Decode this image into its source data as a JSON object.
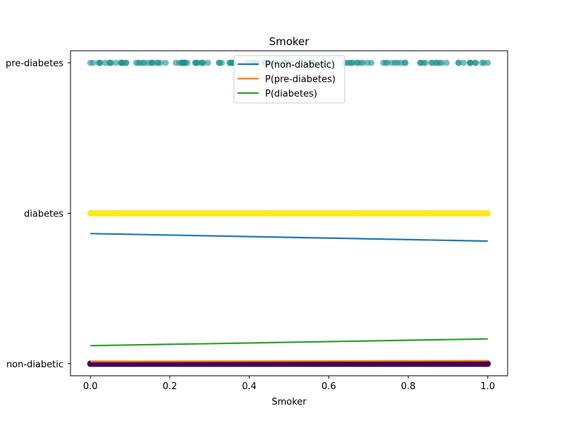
{
  "chart_data": {
    "type": "scatter",
    "title": "Smoker",
    "xlabel": "Smoker",
    "ylabel": "",
    "xlim": [
      -0.05,
      1.05
    ],
    "ylim": [
      -0.08,
      2.08
    ],
    "x_ticks": [
      0.0,
      0.2,
      0.4,
      0.6,
      0.8,
      1.0
    ],
    "x_tick_labels": [
      "0.0",
      "0.2",
      "0.4",
      "0.6",
      "0.8",
      "1.0"
    ],
    "y_ticks": [
      0,
      1,
      2
    ],
    "y_tick_labels": [
      "non-diabetic",
      "diabetes",
      "pre-diabetes"
    ],
    "grid": false,
    "legend_placement": "top-center",
    "scatter_series": [
      {
        "category": "pre-diabetes",
        "y": 2,
        "x_range": [
          0,
          1
        ],
        "color": "#21918c",
        "opacity": 0.6
      },
      {
        "category": "diabetes",
        "y": 1,
        "x_range": [
          0,
          1
        ],
        "color": "#fde725",
        "opacity": 1.0
      },
      {
        "category": "non-diabetic",
        "y": 0,
        "x_range": [
          0,
          1
        ],
        "color": "#440154",
        "opacity": 1.0
      }
    ],
    "series": [
      {
        "name": "P(non-diabetic)",
        "color": "#1f77b4",
        "x": [
          0,
          1
        ],
        "y": [
          0.865,
          0.815
        ]
      },
      {
        "name": "P(pre-diabetes)",
        "color": "#ff7f0e",
        "x": [
          0,
          1
        ],
        "y": [
          0.015,
          0.02
        ]
      },
      {
        "name": "P(diabetes)",
        "color": "#2ca02c",
        "x": [
          0,
          1
        ],
        "y": [
          0.12,
          0.165
        ]
      }
    ]
  }
}
